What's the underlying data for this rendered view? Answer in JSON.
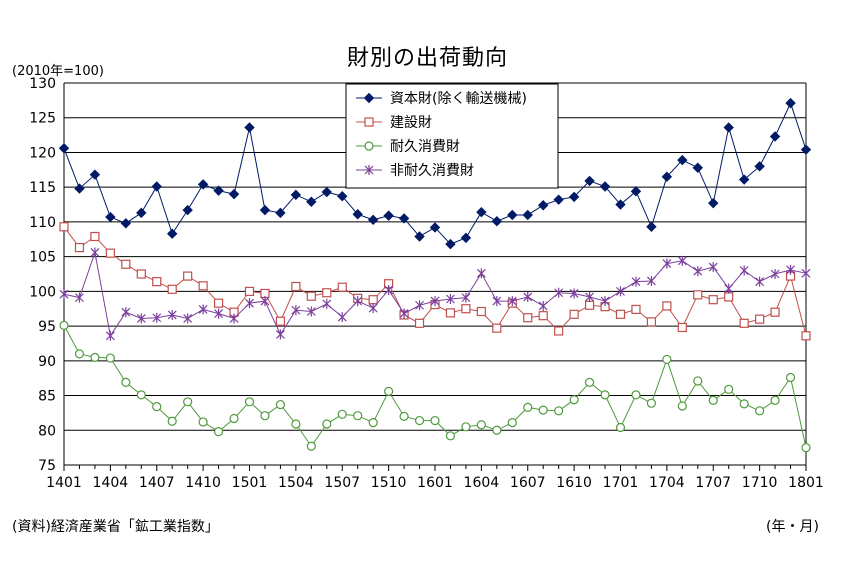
{
  "chart_data": {
    "type": "line",
    "title": "財別の出荷動向",
    "ylabel": "(2010年=100)",
    "xlabel": "(年・月)",
    "source": "(資料)経済産業省「鉱工業指数」",
    "ylim": [
      75,
      130
    ],
    "yticks": [
      75,
      80,
      85,
      90,
      95,
      100,
      105,
      110,
      115,
      120,
      125,
      130
    ],
    "xticks": [
      "1401",
      "1404",
      "1407",
      "1410",
      "1501",
      "1504",
      "1507",
      "1510",
      "1601",
      "1604",
      "1607",
      "1610",
      "1701",
      "1704",
      "1707",
      "1710",
      "1801"
    ],
    "grid": "horizontal",
    "legend_position": "top-center",
    "series": [
      {
        "name": "資本財(除く輸送機械)",
        "color": "#001a66",
        "marker": "diamond",
        "values": [
          120.6,
          114.8,
          116.8,
          110.7,
          109.8,
          111.3,
          115.1,
          108.3,
          111.7,
          115.4,
          114.5,
          114.0,
          123.6,
          111.7,
          111.3,
          113.9,
          112.9,
          114.3,
          113.7,
          111.1,
          110.3,
          110.9,
          110.5,
          107.9,
          109.2,
          106.8,
          107.7,
          111.4,
          110.1,
          111.0,
          111.0,
          112.4,
          113.2,
          113.6,
          115.9,
          115.1,
          112.5,
          114.4,
          109.3,
          116.5,
          118.9,
          117.8,
          112.7,
          123.6,
          116.1,
          118.0,
          122.3,
          127.1,
          120.4
        ]
      },
      {
        "name": "建設財",
        "color": "#c0504d",
        "marker": "square",
        "values": [
          109.3,
          106.3,
          107.9,
          105.5,
          103.9,
          102.5,
          101.4,
          100.3,
          102.2,
          100.8,
          98.3,
          97.0,
          100.0,
          99.7,
          95.7,
          100.7,
          99.3,
          99.8,
          100.6,
          99.0,
          98.8,
          101.1,
          96.6,
          95.4,
          98.1,
          96.9,
          97.5,
          97.1,
          94.7,
          98.3,
          96.2,
          96.5,
          94.3,
          96.7,
          98.0,
          97.8,
          96.7,
          97.4,
          95.6,
          97.9,
          94.8,
          99.5,
          98.8,
          99.2,
          95.4,
          96.0,
          97.0,
          102.2,
          93.6
        ]
      },
      {
        "name": "耐久消費財",
        "color": "#4e9a3c",
        "marker": "circle",
        "values": [
          95.1,
          91.0,
          90.5,
          90.4,
          86.9,
          85.1,
          83.4,
          81.3,
          84.1,
          81.2,
          79.8,
          81.7,
          84.1,
          82.1,
          83.7,
          80.9,
          77.7,
          80.9,
          82.3,
          82.1,
          81.1,
          85.6,
          82.0,
          81.4,
          81.4,
          79.2,
          80.5,
          80.8,
          80.0,
          81.1,
          83.3,
          82.9,
          82.8,
          84.4,
          86.9,
          85.1,
          80.4,
          85.1,
          83.9,
          90.2,
          83.5,
          87.1,
          84.3,
          85.9,
          83.8,
          82.8,
          84.3,
          87.6,
          77.5
        ]
      },
      {
        "name": "非耐久消費財",
        "color": "#7b3f9c",
        "marker": "star",
        "values": [
          99.6,
          99.1,
          105.6,
          93.6,
          97.0,
          96.1,
          96.2,
          96.6,
          96.1,
          97.4,
          96.8,
          96.1,
          98.3,
          98.6,
          93.8,
          97.3,
          97.1,
          98.2,
          96.3,
          98.6,
          97.6,
          100.2,
          96.8,
          98.0,
          98.6,
          98.9,
          99.1,
          102.6,
          98.6,
          98.6,
          99.2,
          97.9,
          99.8,
          99.7,
          99.2,
          98.6,
          100.0,
          101.4,
          101.5,
          104.0,
          104.4,
          102.9,
          103.5,
          100.4,
          103.0,
          101.4,
          102.5,
          103.1,
          102.6
        ]
      }
    ]
  }
}
